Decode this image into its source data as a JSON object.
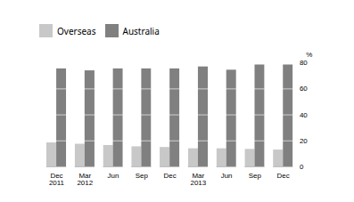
{
  "chart_data": {
    "type": "bar",
    "categories": [
      "Dec\n2011",
      "Mar\n2012",
      "Jun",
      "Sep",
      "Dec",
      "Mar\n2013",
      "Jun",
      "Sep",
      "Dec"
    ],
    "series": [
      {
        "name": "Overseas",
        "color": "#c8c8c8",
        "values": [
          18.5,
          17.5,
          16.5,
          15.5,
          15.0,
          14.0,
          14.0,
          13.5,
          13.0
        ]
      },
      {
        "name": "Australia",
        "color": "#808080",
        "values": [
          75.5,
          74.0,
          75.5,
          75.5,
          75.5,
          77.0,
          74.5,
          78.5,
          78.5
        ]
      }
    ],
    "ylabel": "%",
    "ylim": [
      0,
      80
    ],
    "yticks": [
      0,
      20,
      40,
      60,
      80
    ],
    "legend": "upper left"
  }
}
